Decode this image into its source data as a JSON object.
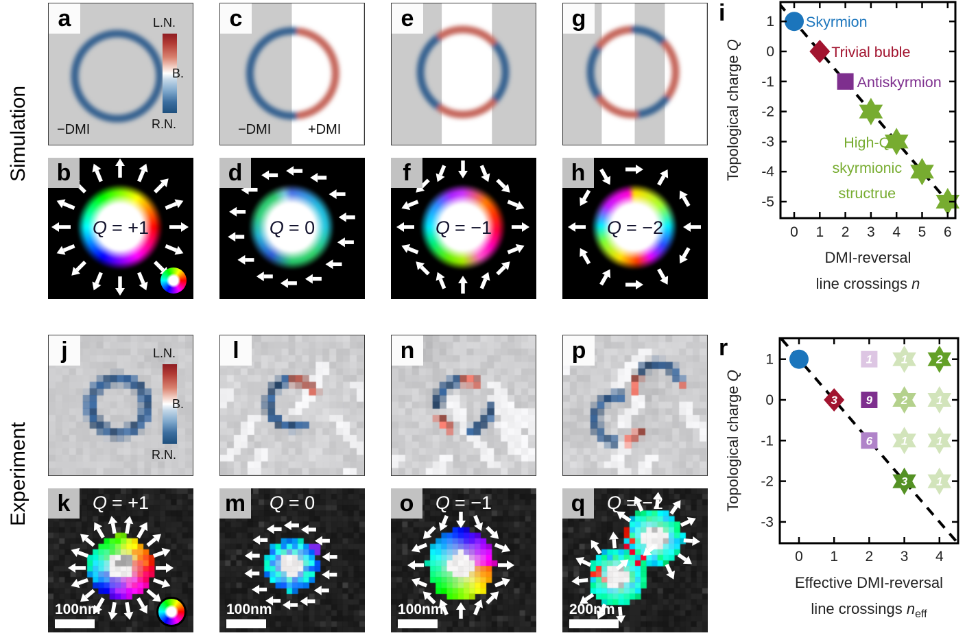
{
  "row_labels": {
    "top": "Simulation",
    "bottom": "Experiment"
  },
  "colorbar": {
    "top": "L.N.",
    "mid": "B.",
    "bot": "R.N."
  },
  "panels": {
    "a": {
      "letter": "a",
      "label_left": "−DMI"
    },
    "b": {
      "letter": "b",
      "q": "Q",
      "val": "= +1"
    },
    "c": {
      "letter": "c",
      "label_left": "−DMI",
      "label_right": "+DMI"
    },
    "d": {
      "letter": "d",
      "q": "Q",
      "val": "= 0"
    },
    "e": {
      "letter": "e"
    },
    "f": {
      "letter": "f",
      "q": "Q",
      "val": "= −1"
    },
    "g": {
      "letter": "g"
    },
    "h": {
      "letter": "h",
      "q": "Q",
      "val": "= −2"
    },
    "i": {
      "letter": "i"
    },
    "j": {
      "letter": "j"
    },
    "k": {
      "letter": "k",
      "q": "Q",
      "val": "= +1",
      "scalebar": "100nm"
    },
    "l": {
      "letter": "l"
    },
    "m": {
      "letter": "m",
      "q": "Q",
      "val": "= 0",
      "scalebar": "100nm"
    },
    "n": {
      "letter": "n"
    },
    "o": {
      "letter": "o",
      "q": "Q",
      "val": "= −1",
      "scalebar": "100nm"
    },
    "p": {
      "letter": "p"
    },
    "q": {
      "letter": "q",
      "q": "Q",
      "val": "= −2",
      "scalebar": "200nm"
    },
    "r": {
      "letter": "r"
    }
  },
  "chart_data": [
    {
      "id": "i",
      "type": "scatter",
      "ylabel": "Topological charge",
      "ylabel_var": "Q",
      "xlabel_line1": "DMI-reversal",
      "xlabel_line2": "line crossings",
      "xlabel_var": "n",
      "xticks": [
        0,
        1,
        2,
        3,
        4,
        5,
        6
      ],
      "yticks": [
        1,
        0,
        -1,
        -2,
        -3,
        -4,
        -5
      ],
      "xlim": [
        -0.55,
        6.85
      ],
      "ylim": [
        -5.6,
        1.65
      ],
      "grid": false,
      "dashed_line": {
        "eq": "Q = 1 - n",
        "from": [
          -0.6,
          1.6
        ],
        "to": [
          6.9,
          -5.9
        ]
      },
      "points": [
        {
          "x": 0,
          "y": 1,
          "marker": "circle",
          "color": "#1b75bc",
          "label": "Skyrmion"
        },
        {
          "x": 1,
          "y": 0,
          "marker": "diamond",
          "color": "#a2142f",
          "label": "Trivial buble"
        },
        {
          "x": 2,
          "y": -1,
          "marker": "square",
          "color": "#7e2f8e",
          "label": "Antiskyrmion"
        },
        {
          "x": 3,
          "y": -2,
          "marker": "star6",
          "color": "#77ac30"
        },
        {
          "x": 4,
          "y": -3,
          "marker": "star6",
          "color": "#77ac30"
        },
        {
          "x": 5,
          "y": -4,
          "marker": "star6",
          "color": "#77ac30"
        },
        {
          "x": 6,
          "y": -5,
          "marker": "star6",
          "color": "#77ac30"
        }
      ],
      "annotation": {
        "lines": [
          "High-Q",
          "skyrmionic",
          "structrue"
        ],
        "color": "#77ac30",
        "x": 2.85,
        "y": -3.2
      }
    },
    {
      "id": "r",
      "type": "scatter",
      "ylabel": "Topological charge",
      "ylabel_var": "Q",
      "xlabel_line1": "Effective DMI-reversal",
      "xlabel_line2": "line crossings",
      "xlabel_var": "n",
      "xlabel_sub": "eff",
      "xticks": [
        0,
        1,
        2,
        3,
        4
      ],
      "yticks": [
        1,
        0,
        -1,
        -2,
        -3
      ],
      "xlim": [
        -0.55,
        4.55
      ],
      "ylim": [
        -3.55,
        1.5
      ],
      "grid": false,
      "dashed_line": {
        "eq": "Q = 1 - n",
        "from": [
          -0.5,
          1.5
        ],
        "to": [
          4.6,
          -3.6
        ]
      },
      "points": [
        {
          "x": 0,
          "y": 1,
          "marker": "circle",
          "color": "#1b75bc"
        },
        {
          "x": 2,
          "y": 1,
          "marker": "square",
          "color": "#ddc6e3",
          "count": "1"
        },
        {
          "x": 3,
          "y": 1,
          "marker": "star6",
          "color": "#77ac30",
          "opacity": 0.32,
          "count": "1"
        },
        {
          "x": 4,
          "y": 1,
          "marker": "star6",
          "color": "#63a027",
          "opacity": 1,
          "count": "2"
        },
        {
          "x": 1,
          "y": 0,
          "marker": "diamond",
          "color": "#a2142f",
          "count": "3"
        },
        {
          "x": 2,
          "y": 0,
          "marker": "square",
          "color": "#7e2f8e",
          "count": "9"
        },
        {
          "x": 3,
          "y": 0,
          "marker": "star6",
          "color": "#77ac30",
          "opacity": 0.55,
          "count": "2"
        },
        {
          "x": 4,
          "y": 0,
          "marker": "star6",
          "color": "#77ac30",
          "opacity": 0.32,
          "count": "1"
        },
        {
          "x": 2,
          "y": -1,
          "marker": "square",
          "color": "#b083c9",
          "count": "6"
        },
        {
          "x": 3,
          "y": -1,
          "marker": "star6",
          "color": "#77ac30",
          "opacity": 0.32,
          "count": "1"
        },
        {
          "x": 4,
          "y": -1,
          "marker": "star6",
          "color": "#77ac30",
          "opacity": 0.32,
          "count": "1"
        },
        {
          "x": 3,
          "y": -2,
          "marker": "star6",
          "color": "#549124",
          "opacity": 1,
          "count": "3"
        },
        {
          "x": 4,
          "y": -2,
          "marker": "star6",
          "color": "#77ac30",
          "opacity": 0.32,
          "count": "1"
        }
      ]
    }
  ]
}
